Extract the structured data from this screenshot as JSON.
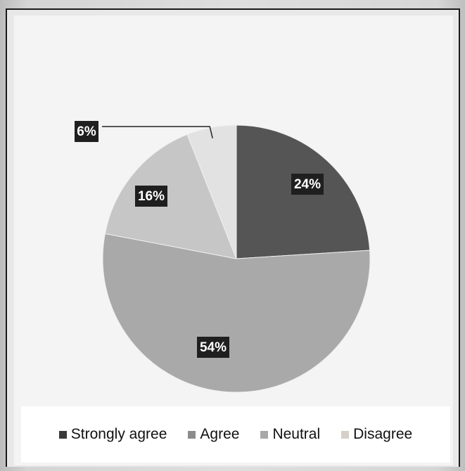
{
  "chart_data": {
    "type": "pie",
    "categories": [
      "Strongly agree",
      "Agree",
      "Neutral",
      "Disagree"
    ],
    "values": [
      24,
      54,
      16,
      6
    ],
    "labels": [
      "24%",
      "54%",
      "16%",
      "6%"
    ],
    "colors": [
      "#555555",
      "#a9a9a9",
      "#c6c6c6",
      "#e2e2e2"
    ],
    "legend_position": "bottom",
    "start_angle_deg": 0,
    "direction": "clockwise"
  },
  "legend": {
    "items": [
      {
        "label": "Strongly agree",
        "color": "#3a3a3a"
      },
      {
        "label": "Agree",
        "color": "#8c8c8c"
      },
      {
        "label": "Neutral",
        "color": "#a8a8a8"
      },
      {
        "label": "Disagree",
        "color": "#d6d0c8"
      }
    ]
  }
}
